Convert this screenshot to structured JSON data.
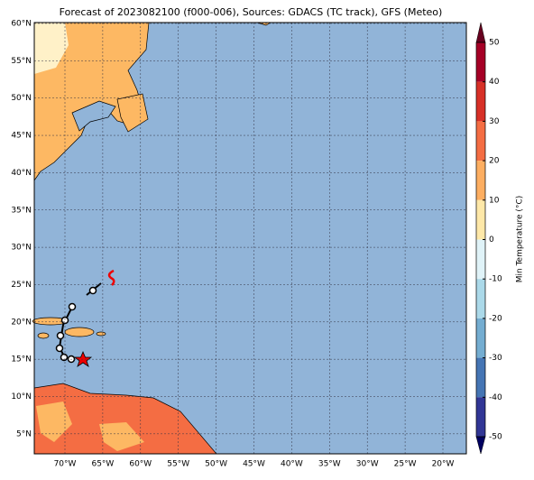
{
  "header": {
    "title": "Forecast of 2023082100 (f000-006), Sources: GDACS (TC track), GFS (Meteo)"
  },
  "map": {
    "lat_ticks": [
      {
        "value": 60,
        "label": "60°N"
      },
      {
        "value": 55,
        "label": "55°N"
      },
      {
        "value": 50,
        "label": "50°N"
      },
      {
        "value": 45,
        "label": "45°N"
      },
      {
        "value": 40,
        "label": "40°N"
      },
      {
        "value": 35,
        "label": "35°N"
      },
      {
        "value": 30,
        "label": "30°N"
      },
      {
        "value": 25,
        "label": "25°N"
      },
      {
        "value": 20,
        "label": "20°N"
      },
      {
        "value": 15,
        "label": "15°N"
      },
      {
        "value": 10,
        "label": "10°N"
      },
      {
        "value": 5,
        "label": "5°N"
      }
    ],
    "lon_ticks": [
      {
        "value": -70,
        "label": "70°W"
      },
      {
        "value": -65,
        "label": "65°W"
      },
      {
        "value": -60,
        "label": "60°W"
      },
      {
        "value": -55,
        "label": "55°W"
      },
      {
        "value": -50,
        "label": "50°W"
      },
      {
        "value": -45,
        "label": "45°W"
      },
      {
        "value": -40,
        "label": "40°W"
      },
      {
        "value": -35,
        "label": "35°W"
      },
      {
        "value": -30,
        "label": "30°W"
      },
      {
        "value": -25,
        "label": "25°W"
      },
      {
        "value": -20,
        "label": "20°W"
      }
    ]
  },
  "colorbar": {
    "label": "Min Temperature (°C)",
    "ticks": [
      50,
      40,
      30,
      20,
      10,
      0,
      -10,
      -20,
      -30,
      -40,
      -50
    ]
  }
}
